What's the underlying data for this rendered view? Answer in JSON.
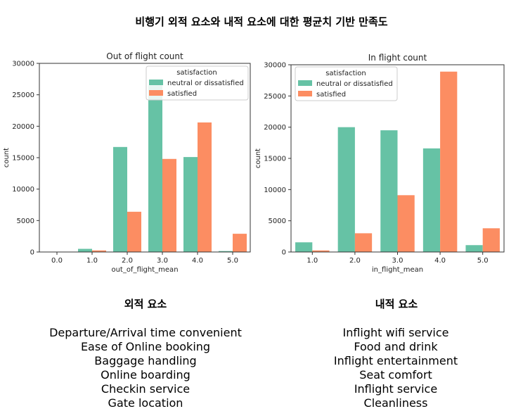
{
  "title": "비행기 외적 요소와 내적 요소에 대한 평균치 기반 만족도",
  "colors": {
    "neutral": "#66c2a5",
    "satisfied": "#fc8d62"
  },
  "chart_data": [
    {
      "type": "bar",
      "title": "Out of flight count",
      "xlabel": "out_of_flight_mean",
      "ylabel": "count",
      "categories": [
        "0.0",
        "1.0",
        "2.0",
        "3.0",
        "4.0",
        "5.0"
      ],
      "ylim": [
        0,
        30000
      ],
      "yticks": [
        0,
        5000,
        10000,
        15000,
        20000,
        25000,
        30000
      ],
      "legend": {
        "title": "satisfaction",
        "position": "top-right"
      },
      "series": [
        {
          "name": "neutral or dissatisfied",
          "values": [
            0,
            500,
            16700,
            26500,
            15100,
            150
          ]
        },
        {
          "name": "satisfied",
          "values": [
            0,
            250,
            6400,
            14800,
            20600,
            2900
          ]
        }
      ]
    },
    {
      "type": "bar",
      "title": "In flight count",
      "xlabel": "in_flight_mean",
      "ylabel": "count",
      "categories": [
        "1.0",
        "2.0",
        "3.0",
        "4.0",
        "5.0"
      ],
      "ylim": [
        0,
        30000
      ],
      "yticks": [
        0,
        5000,
        10000,
        15000,
        20000,
        25000,
        30000
      ],
      "legend": {
        "title": "satisfaction",
        "position": "top-left"
      },
      "series": [
        {
          "name": "neutral or dissatisfied",
          "values": [
            1550,
            20000,
            19500,
            16600,
            1100
          ]
        },
        {
          "name": "satisfied",
          "values": [
            250,
            3000,
            9100,
            28900,
            3800
          ]
        }
      ]
    }
  ],
  "outer": {
    "heading": "외적 요소",
    "items": [
      "Departure/Arrival time convenient",
      "Ease of Online booking",
      "Baggage handling",
      "Online boarding",
      "Checkin service",
      "Gate location"
    ]
  },
  "inner": {
    "heading": "내적 요소",
    "items": [
      "Inflight wifi service",
      "Food and drink",
      "Inflight entertainment",
      "Seat comfort",
      "Inflight service",
      "Cleanliness"
    ]
  }
}
